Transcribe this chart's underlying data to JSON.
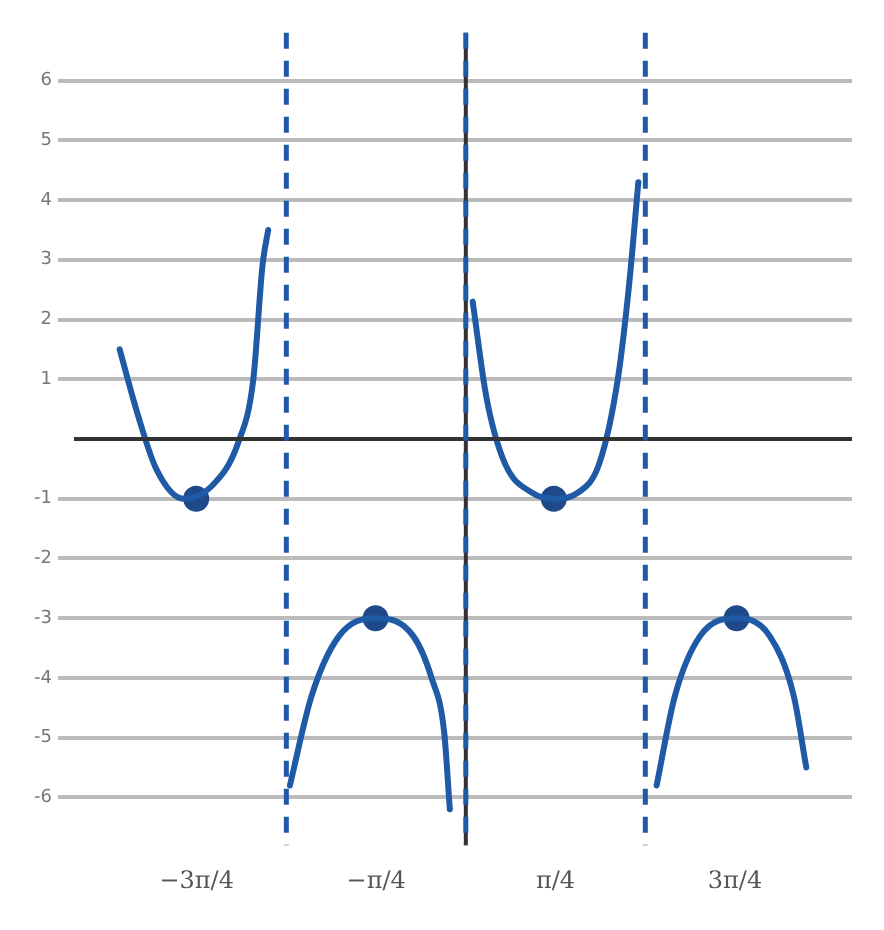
{
  "chart_data": {
    "type": "line",
    "xlim": [
      -3.43,
      3.38
    ],
    "ylim": [
      -6.8,
      6.8
    ],
    "xticks": [
      {
        "value": -2.356,
        "label": "−3π/4"
      },
      {
        "value": -0.785,
        "label": "−π/4"
      },
      {
        "value": 0.785,
        "label": "π/4"
      },
      {
        "value": 2.356,
        "label": "3π/4"
      }
    ],
    "yticks": [
      -6,
      -5,
      -4,
      -3,
      -2,
      -1,
      1,
      2,
      3,
      4,
      5,
      6
    ],
    "grid": "y",
    "marker": "none",
    "line_style": "solid",
    "series": [
      {
        "color": "#1f5aa6",
        "x": [
          -3.03,
          -2.87,
          -2.71,
          -2.47,
          -2.23,
          -1.99,
          -1.86,
          -1.78,
          -1.73
        ],
        "values": [
          1.5,
          0.4,
          -0.5,
          -1,
          -0.8,
          -0.05,
          1.0,
          2.9,
          3.5
        ]
      },
      {
        "color": "#1f5aa6",
        "x": [
          -1.54,
          -1.35,
          -1.11,
          -0.79,
          -0.46,
          -0.3,
          -0.19,
          -0.14
        ],
        "values": [
          -5.8,
          -4.3,
          -3.3,
          -3.0,
          -3.3,
          -4,
          -4.9,
          -6.2
        ]
      },
      {
        "color": "#1f5aa6",
        "x": [
          0.06,
          0.18,
          0.34,
          0.58,
          0.77,
          0.98,
          1.17,
          1.33,
          1.43,
          1.51
        ],
        "values": [
          2.3,
          0.7,
          -0.4,
          -0.9,
          -1.0,
          -0.9,
          -0.4,
          1.0,
          2.6,
          4.3
        ]
      },
      {
        "color": "#1f5aa6",
        "x": [
          1.67,
          1.83,
          2.05,
          2.37,
          2.66,
          2.87,
          2.98
        ],
        "values": [
          -5.8,
          -4.3,
          -3.3,
          -3.0,
          -3.3,
          -4.3,
          -5.5
        ]
      },
      {
        "type": "scatter",
        "marker": "circle",
        "color": "#1f4a8a",
        "x": [
          -2.36,
          -0.79,
          0.77,
          2.37
        ],
        "values": [
          -1,
          -3,
          -1,
          -3
        ]
      }
    ],
    "ref_lines": [
      {
        "axis": "x",
        "value": -1.571,
        "color": "#1f5aa6",
        "line_style": "dashed"
      },
      {
        "axis": "x",
        "value": 0,
        "color": "#1f5aa6",
        "line_style": "dashed"
      },
      {
        "axis": "x",
        "value": 1.571,
        "color": "#1f5aa6",
        "line_style": "dashed"
      }
    ]
  }
}
